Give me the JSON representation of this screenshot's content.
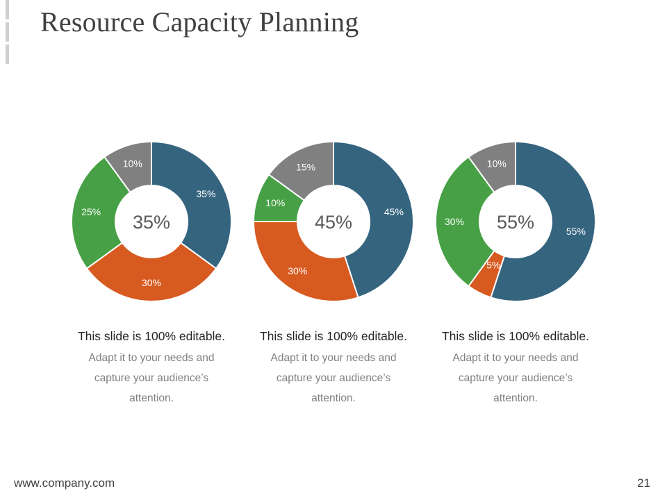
{
  "slide": {
    "title": "Resource Capacity Planning",
    "footer_url": "www.company.com",
    "page_number": "21"
  },
  "colors": {
    "blue": "#35647f",
    "orange": "#d75a20",
    "green": "#47a045",
    "gray": "#808080",
    "segment_border": "#ffffff"
  },
  "chart_data": [
    {
      "type": "pie",
      "title": "35%",
      "segments": [
        {
          "label": "35%",
          "value": 35,
          "color": "blue"
        },
        {
          "label": "30%",
          "value": 30,
          "color": "orange"
        },
        {
          "label": "25%",
          "value": 25,
          "color": "green"
        },
        {
          "label": "10%",
          "value": 10,
          "color": "gray"
        }
      ]
    },
    {
      "type": "pie",
      "title": "45%",
      "segments": [
        {
          "label": "45%",
          "value": 45,
          "color": "blue"
        },
        {
          "label": "30%",
          "value": 30,
          "color": "orange"
        },
        {
          "label": "10%",
          "value": 10,
          "color": "green"
        },
        {
          "label": "15%",
          "value": 15,
          "color": "gray"
        }
      ]
    },
    {
      "type": "pie",
      "title": "55%",
      "segments": [
        {
          "label": "55%",
          "value": 55,
          "color": "blue"
        },
        {
          "label": "5%",
          "value": 5,
          "color": "orange"
        },
        {
          "label": "30%",
          "value": 30,
          "color": "green"
        },
        {
          "label": "10%",
          "value": 10,
          "color": "gray"
        }
      ]
    }
  ],
  "captions": [
    {
      "title": "This slide is 100% editable.",
      "lines": [
        "Adapt it to your needs and",
        "capture your audience’s",
        "attention."
      ]
    },
    {
      "title": "This slide is 100% editable.",
      "lines": [
        "Adapt it to your needs and",
        "capture your audience’s",
        "attention."
      ]
    },
    {
      "title": "This slide is 100% editable.",
      "lines": [
        "Adapt it to your needs and",
        "capture your audience’s",
        "attention."
      ]
    }
  ]
}
